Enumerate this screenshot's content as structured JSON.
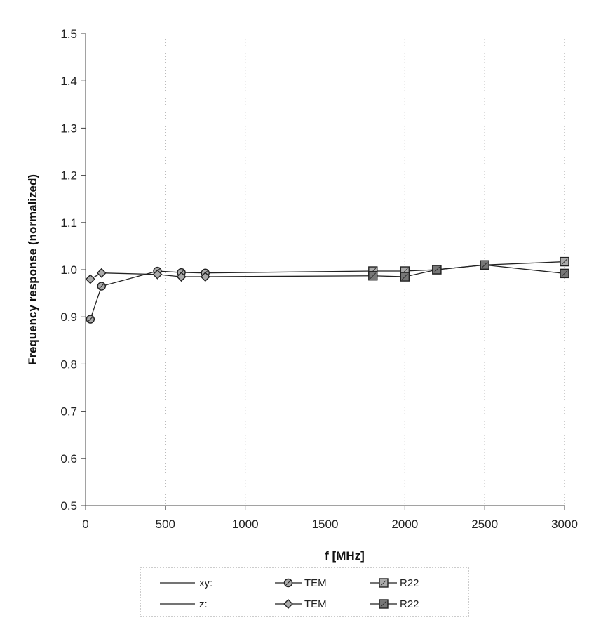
{
  "chart_data": {
    "type": "line",
    "title": "",
    "xlabel": "f [MHz]",
    "ylabel": "Frequency response (normalized)",
    "xlim": [
      0,
      3000
    ],
    "ylim": [
      0.5,
      1.5
    ],
    "x_ticks": [
      "0",
      "500",
      "1000",
      "1500",
      "2000",
      "2500",
      "3000"
    ],
    "y_ticks": [
      "0.5",
      "0.6",
      "0.7",
      "0.8",
      "0.9",
      "1.0",
      "1.1",
      "1.2",
      "1.3",
      "1.4",
      "1.5"
    ],
    "grid": "vertical dotted",
    "legend_position": "bottom",
    "legend_rows": [
      {
        "group": "xy:",
        "labels": [
          "TEM",
          "R22"
        ]
      },
      {
        "group": "z:",
        "labels": [
          "TEM",
          "R22"
        ]
      }
    ],
    "series": [
      {
        "name": "TEM",
        "group": "xy:",
        "marker": "circle",
        "x": [
          30,
          100,
          450,
          600,
          750
        ],
        "y": [
          0.895,
          0.965,
          0.997,
          0.994,
          0.993
        ]
      },
      {
        "name": "TEM",
        "group": "z:",
        "marker": "diamond",
        "x": [
          30,
          100,
          450,
          600,
          750
        ],
        "y": [
          0.98,
          0.993,
          0.99,
          0.985,
          0.985
        ]
      },
      {
        "name": "R22",
        "group": "xy:",
        "marker": "square",
        "x": [
          1800,
          2000,
          2200,
          2500,
          3000
        ],
        "y": [
          0.997,
          0.997,
          1.0,
          1.01,
          1.017
        ]
      },
      {
        "name": "R22",
        "group": "z:",
        "marker": "square-dark",
        "x": [
          1800,
          2000,
          2200,
          2500,
          3000
        ],
        "y": [
          0.987,
          0.985,
          1.0,
          1.01,
          0.992
        ]
      }
    ],
    "colors": {
      "line": "#222222",
      "marker_light": "#aaaaaa",
      "marker_dark": "#777777",
      "grid": "#999999"
    }
  }
}
